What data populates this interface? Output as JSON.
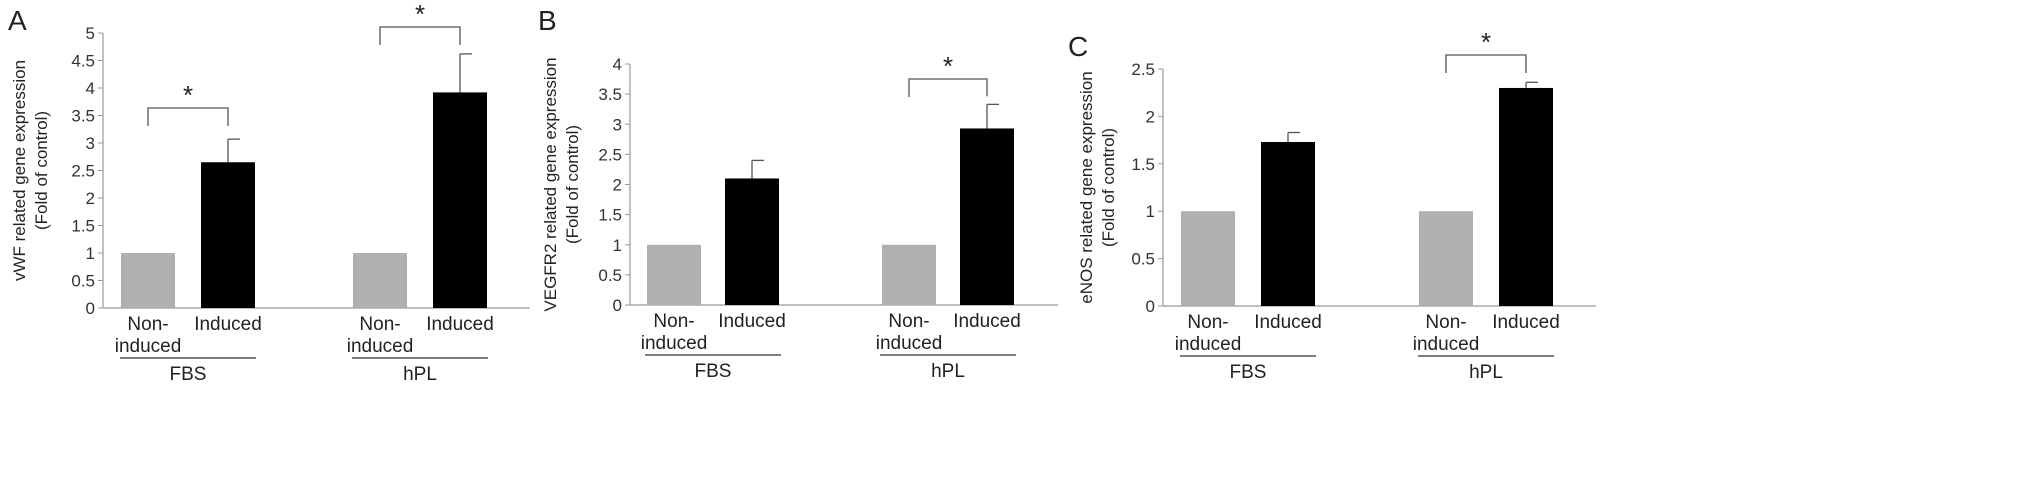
{
  "chart_data": [
    {
      "panel": "A",
      "type": "bar",
      "ylabel_line1": "vWF  related gene expression",
      "ylabel_line2": "(Fold of control)",
      "ylim": [
        0,
        5
      ],
      "yticks": [
        "0",
        "0.5",
        "1",
        "1.5",
        "2",
        "2.5",
        "3",
        "3.5",
        "4",
        "4.5",
        "5"
      ],
      "groups": [
        {
          "name": "FBS",
          "bars": [
            {
              "label1": "Non-",
              "label2": "induced",
              "value": 1.0,
              "error": 0.0,
              "color": "#b0b0b0"
            },
            {
              "label1": "Induced",
              "label2": "",
              "value": 2.65,
              "error": 0.42,
              "color": "#000000"
            }
          ],
          "significance": "*"
        },
        {
          "name": "hPL",
          "bars": [
            {
              "label1": "Non-",
              "label2": "induced",
              "value": 1.0,
              "error": 0.0,
              "color": "#b0b0b0"
            },
            {
              "label1": "Induced",
              "label2": "",
              "value": 3.92,
              "error": 0.7,
              "color": "#000000"
            }
          ],
          "significance": "*"
        }
      ]
    },
    {
      "panel": "B",
      "type": "bar",
      "ylabel_line1": "VEGFR2 related gene expression",
      "ylabel_line2": "(Fold of control)",
      "ylim": [
        0,
        4
      ],
      "yticks": [
        "0",
        "0.5",
        "1",
        "1.5",
        "2",
        "2.5",
        "3",
        "3.5",
        "4"
      ],
      "groups": [
        {
          "name": "FBS",
          "bars": [
            {
              "label1": "Non-",
              "label2": "induced",
              "value": 1.0,
              "error": 0.0,
              "color": "#b0b0b0"
            },
            {
              "label1": "Induced",
              "label2": "",
              "value": 2.1,
              "error": 0.3,
              "color": "#000000"
            }
          ],
          "significance": ""
        },
        {
          "name": "hPL",
          "bars": [
            {
              "label1": "Non-",
              "label2": "induced",
              "value": 1.0,
              "error": 0.0,
              "color": "#b0b0b0"
            },
            {
              "label1": "Induced",
              "label2": "",
              "value": 2.93,
              "error": 0.4,
              "color": "#000000"
            }
          ],
          "significance": "*"
        }
      ]
    },
    {
      "panel": "C",
      "type": "bar",
      "ylabel_line1": "eNOS related gene expression",
      "ylabel_line2": "(Fold of control)",
      "ylim": [
        0,
        2.5
      ],
      "yticks": [
        "0",
        "0.5",
        "1",
        "1.5",
        "2",
        "2.5"
      ],
      "groups": [
        {
          "name": "FBS",
          "bars": [
            {
              "label1": "Non-",
              "label2": "induced",
              "value": 1.0,
              "error": 0.0,
              "color": "#b0b0b0"
            },
            {
              "label1": "Induced",
              "label2": "",
              "value": 1.73,
              "error": 0.1,
              "color": "#000000"
            }
          ],
          "significance": ""
        },
        {
          "name": "hPL",
          "bars": [
            {
              "label1": "Non-",
              "label2": "induced",
              "value": 1.0,
              "error": 0.0,
              "color": "#b0b0b0"
            },
            {
              "label1": "Induced",
              "label2": "",
              "value": 2.3,
              "error": 0.06,
              "color": "#000000"
            }
          ],
          "significance": "*"
        }
      ]
    }
  ]
}
